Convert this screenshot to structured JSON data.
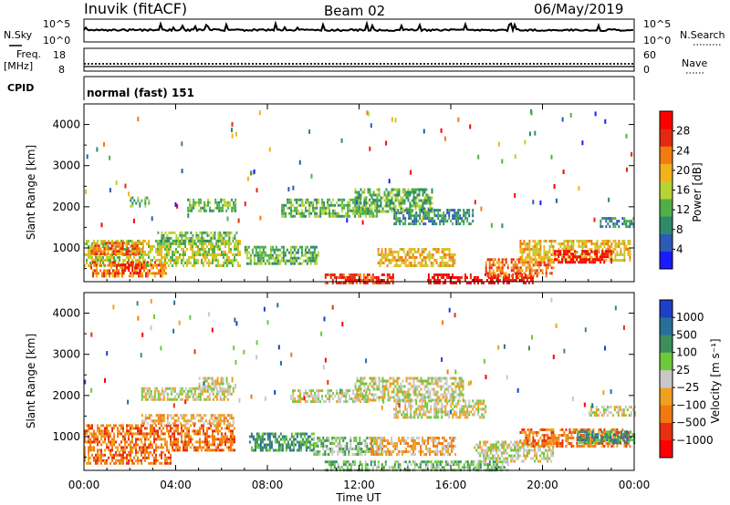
{
  "header": {
    "station": "Inuvik (fitACF)",
    "beam": "Beam 02",
    "date": "06/May/2019"
  },
  "nsky_panel": {
    "left_label": "N.Sky",
    "left_ticks": [
      "10^5",
      "10^0"
    ],
    "right_label": "N.Search",
    "right_ticks": [
      "10^5",
      "10^0"
    ]
  },
  "freq_panel": {
    "left_label_line1": "Freq.",
    "left_label_line2": "[MHz]",
    "left_ticks": [
      "18",
      "8"
    ],
    "right_label": "Nave",
    "right_ticks": [
      "60",
      "0"
    ]
  },
  "cpid_panel": {
    "label": "CPID",
    "mode_text": "normal (fast) 151"
  },
  "colors": {
    "power_scale": [
      "#1a1aff",
      "#2d5ab4",
      "#2f8a6a",
      "#4fb04a",
      "#b8d234",
      "#f2b21d",
      "#f27a10",
      "#e22a10",
      "#ff0000"
    ],
    "velocity_scale": [
      "#1f3fc8",
      "#2a6f9a",
      "#3c8f5a",
      "#6ec83a",
      "#c8c8c8",
      "#f0a020",
      "#f07a10",
      "#e83010",
      "#ff0000"
    ]
  },
  "chart_data": [
    {
      "type": "heatmap",
      "name": "power",
      "ylabel": "Slant Range [km]",
      "y_ticks": [
        "1000",
        "2000",
        "3000",
        "4000"
      ],
      "y_range_km": [
        180,
        4500
      ],
      "x_range_hours": [
        0,
        24
      ],
      "colorbar_label": "Power [dB]",
      "colorbar_ticks": [
        "4",
        "8",
        "12",
        "16",
        "20",
        "24",
        "28"
      ],
      "colorbar_range": [
        0,
        32
      ],
      "regions": [
        {
          "t0": 0.0,
          "t1": 6.8,
          "r0": 600,
          "r1": 1200,
          "level": 4
        },
        {
          "t0": 0.2,
          "t1": 3.6,
          "r0": 330,
          "r1": 680,
          "level": 6
        },
        {
          "t0": 1.6,
          "t1": 2.5,
          "r0": 380,
          "r1": 620,
          "level": 8
        },
        {
          "t0": 0.3,
          "t1": 2.6,
          "r0": 850,
          "r1": 1150,
          "level": 6
        },
        {
          "t0": 3.2,
          "t1": 6.7,
          "r0": 1100,
          "r1": 1400,
          "level": 3
        },
        {
          "t0": 4.5,
          "t1": 6.6,
          "r0": 1900,
          "r1": 2200,
          "level": 3
        },
        {
          "t0": 2.0,
          "t1": 2.8,
          "r0": 2050,
          "r1": 2250,
          "level": 3
        },
        {
          "t0": 7.0,
          "t1": 10.2,
          "r0": 650,
          "r1": 1050,
          "level": 3
        },
        {
          "t0": 8.6,
          "t1": 12.8,
          "r0": 1800,
          "r1": 2200,
          "level": 3
        },
        {
          "t0": 11.8,
          "t1": 15.2,
          "r0": 1900,
          "r1": 2450,
          "level": 3
        },
        {
          "t0": 13.5,
          "t1": 17.0,
          "r0": 1600,
          "r1": 1950,
          "level": 2
        },
        {
          "t0": 12.8,
          "t1": 16.2,
          "r0": 550,
          "r1": 1000,
          "level": 5
        },
        {
          "t0": 10.5,
          "t1": 13.5,
          "r0": 180,
          "r1": 380,
          "level": 7
        },
        {
          "t0": 15.0,
          "t1": 19.6,
          "r0": 180,
          "r1": 380,
          "level": 8
        },
        {
          "t0": 17.5,
          "t1": 20.5,
          "r0": 350,
          "r1": 750,
          "level": 6
        },
        {
          "t0": 19.0,
          "t1": 23.8,
          "r0": 700,
          "r1": 1200,
          "level": 5
        },
        {
          "t0": 20.5,
          "t1": 23.0,
          "r0": 650,
          "r1": 950,
          "level": 8
        },
        {
          "t0": 22.5,
          "t1": 24.0,
          "r0": 1500,
          "r1": 1750,
          "level": 2
        }
      ]
    },
    {
      "type": "heatmap",
      "name": "velocity",
      "ylabel": "Slant Range [km]",
      "xlabel": "Time UT",
      "x_ticks": [
        "00:00",
        "04:00",
        "08:00",
        "12:00",
        "16:00",
        "20:00",
        "00:00"
      ],
      "y_ticks": [
        "1000",
        "2000",
        "3000",
        "4000"
      ],
      "y_range_km": [
        180,
        4500
      ],
      "x_range_hours": [
        0,
        24
      ],
      "colorbar_label": "Velocity [m s⁻¹]",
      "colorbar_ticks": [
        "1000",
        "500",
        "100",
        "25",
        "−25",
        "−100",
        "−500",
        "−1000"
      ],
      "regions": [
        {
          "t0": 0.0,
          "t1": 3.8,
          "r0": 330,
          "r1": 650,
          "level": 6
        },
        {
          "t0": 0.0,
          "t1": 6.6,
          "r0": 700,
          "r1": 1300,
          "level": 6
        },
        {
          "t0": 2.5,
          "t1": 6.5,
          "r0": 1300,
          "r1": 1550,
          "level": 5
        },
        {
          "t0": 2.5,
          "t1": 6.5,
          "r0": 1900,
          "r1": 2200,
          "level": 4
        },
        {
          "t0": 5.0,
          "t1": 6.5,
          "r0": 2150,
          "r1": 2450,
          "level": 4
        },
        {
          "t0": 7.2,
          "t1": 10.0,
          "r0": 700,
          "r1": 1100,
          "level": 2
        },
        {
          "t0": 9.0,
          "t1": 12.5,
          "r0": 1850,
          "r1": 2150,
          "level": 4
        },
        {
          "t0": 11.8,
          "t1": 16.5,
          "r0": 1900,
          "r1": 2450,
          "level": 4
        },
        {
          "t0": 13.5,
          "t1": 17.5,
          "r0": 1500,
          "r1": 1900,
          "level": 4
        },
        {
          "t0": 10.0,
          "t1": 13.0,
          "r0": 550,
          "r1": 1000,
          "level": 3
        },
        {
          "t0": 12.5,
          "t1": 16.2,
          "r0": 600,
          "r1": 1000,
          "level": 5
        },
        {
          "t0": 10.5,
          "t1": 18.5,
          "r0": 180,
          "r1": 420,
          "level": 3
        },
        {
          "t0": 17.0,
          "t1": 20.5,
          "r0": 400,
          "r1": 900,
          "level": 4
        },
        {
          "t0": 19.0,
          "t1": 23.8,
          "r0": 750,
          "r1": 1200,
          "level": 6
        },
        {
          "t0": 21.5,
          "t1": 24.0,
          "r0": 850,
          "r1": 1150,
          "level": 2
        },
        {
          "t0": 22.0,
          "t1": 24.0,
          "r0": 1500,
          "r1": 1750,
          "level": 4
        }
      ]
    }
  ]
}
